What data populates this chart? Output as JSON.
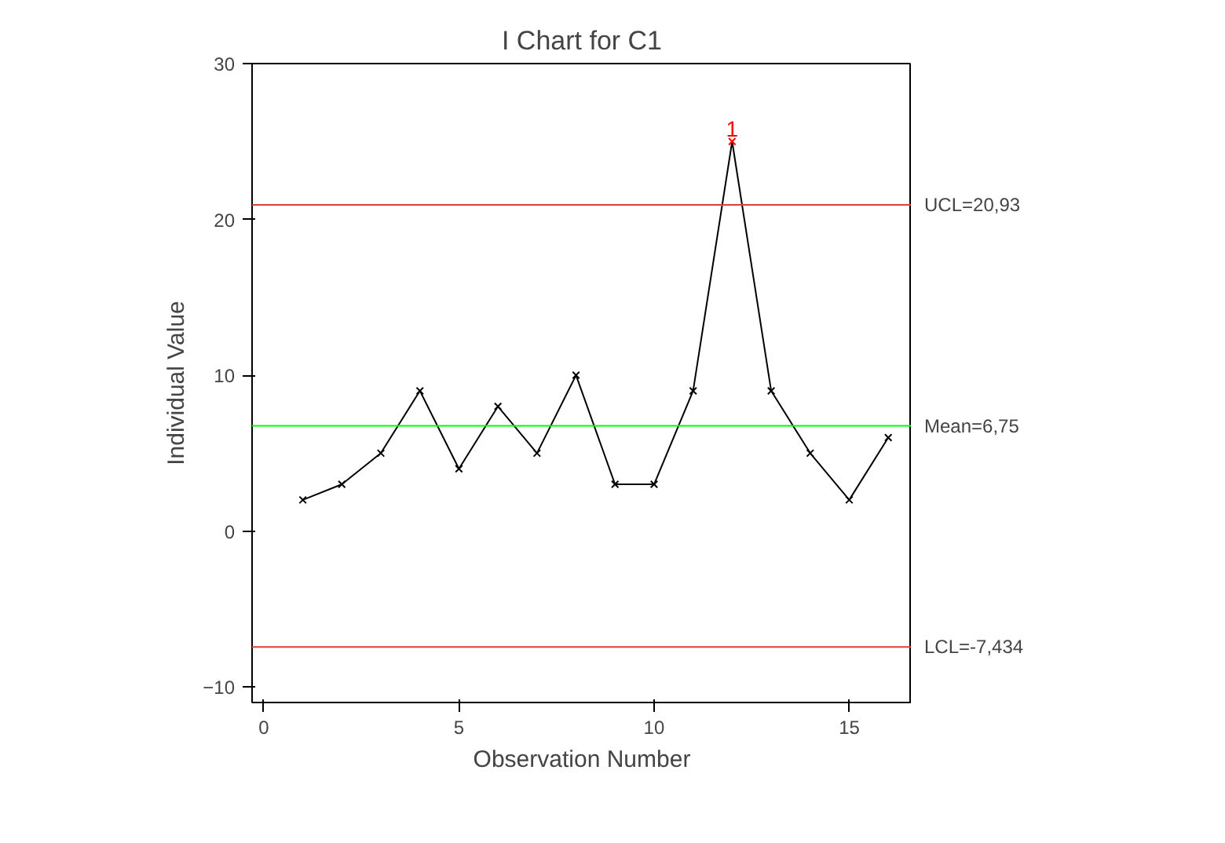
{
  "chart_data": {
    "type": "line",
    "title": "I Chart for C1",
    "xlabel": "Observation Number",
    "ylabel": "Individual Value",
    "x": [
      1,
      2,
      3,
      4,
      5,
      6,
      7,
      8,
      9,
      10,
      11,
      12,
      13,
      14,
      15,
      16
    ],
    "series": [
      {
        "color": "#000000",
        "values": [
          2,
          3,
          5,
          9,
          4,
          8,
          5,
          10,
          3,
          3,
          9,
          25,
          9,
          5,
          2,
          6
        ],
        "colors": [
          "#000000",
          "#000000",
          "#000000",
          "#000000",
          "#000000",
          "#000000",
          "#000000",
          "#000000",
          "#000000",
          "#000000",
          "#000000",
          "#ff0000",
          "#000000",
          "#000000",
          "#000000",
          "#000000"
        ]
      }
    ],
    "marker": "cross",
    "line_style": "solid",
    "grid": false,
    "xlim": [
      -0.3,
      16.6
    ],
    "xticks": [
      0,
      5,
      10,
      15
    ],
    "ylim": [
      -11,
      30
    ],
    "yticks": [
      -10,
      0,
      10,
      20,
      30
    ],
    "ref_lines": [
      {
        "axis": "y",
        "value": 20.93,
        "label": "UCL=20,93",
        "color": "#e03c3c"
      },
      {
        "axis": "y",
        "value": 6.75,
        "label": "Mean=6,75",
        "color": "#00ff00"
      },
      {
        "axis": "y",
        "value": -7.434,
        "label": "LCL=-7,434",
        "color": "#e03c3c"
      }
    ],
    "annotations": [
      {
        "text": "1",
        "x": 12,
        "y": 25
      }
    ]
  }
}
